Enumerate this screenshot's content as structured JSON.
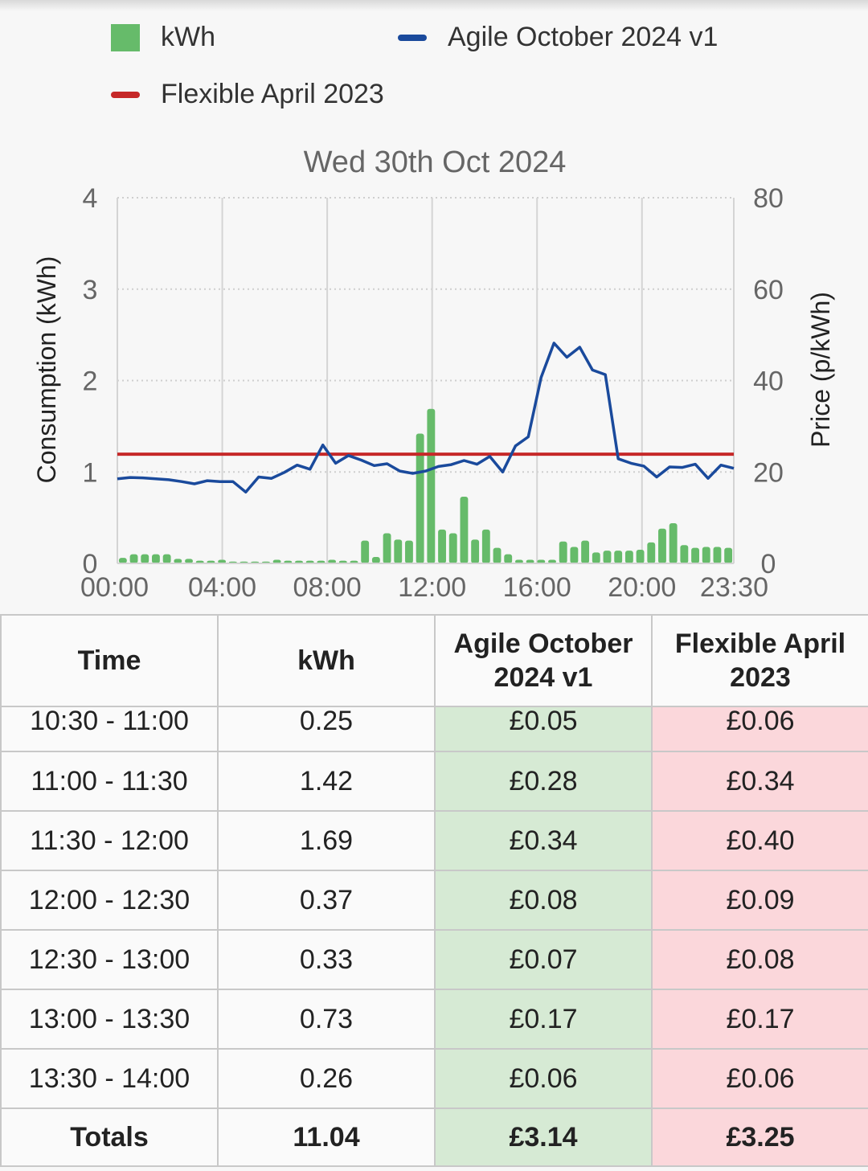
{
  "legend": [
    {
      "label": "kWh",
      "color": "#66bb6a",
      "shape": "box"
    },
    {
      "label": "Agile October 2024 v1",
      "color": "#1a4a9c",
      "shape": "line"
    },
    {
      "label": "Flexible April 2023",
      "color": "#c62828",
      "shape": "line"
    }
  ],
  "chart_data": {
    "type": "bar",
    "title": "Wed 30th Oct 2024",
    "ylabel": "Consumption (kWh)",
    "y2label": "Price (p/kWh)",
    "ylim": [
      0,
      4
    ],
    "y2lim": [
      0,
      80
    ],
    "yticks": [
      "0",
      "1",
      "2",
      "3",
      "4"
    ],
    "y2ticks": [
      "0",
      "20",
      "40",
      "60",
      "80"
    ],
    "xticks": [
      "00:00",
      "04:00",
      "08:00",
      "12:00",
      "16:00",
      "20:00",
      "23:30"
    ],
    "grid": true,
    "series": [
      {
        "name": "kWh",
        "type": "bar",
        "axis": "left",
        "color": "#66bb6a",
        "values": [
          0.06,
          0.1,
          0.1,
          0.1,
          0.1,
          0.05,
          0.05,
          0.03,
          0.03,
          0.04,
          0.02,
          0.02,
          0.02,
          0.02,
          0.04,
          0.03,
          0.03,
          0.03,
          0.03,
          0.04,
          0.03,
          0.03,
          0.25,
          0.07,
          0.33,
          0.26,
          0.25,
          1.42,
          1.69,
          0.37,
          0.33,
          0.73,
          0.26,
          0.37,
          0.17,
          0.1,
          0.04,
          0.04,
          0.04,
          0.04,
          0.24,
          0.18,
          0.25,
          0.12,
          0.14,
          0.14,
          0.14,
          0.15,
          0.23,
          0.38,
          0.44,
          0.2,
          0.17,
          0.18,
          0.18,
          0.17
        ]
      },
      {
        "name": "Agile October 2024 v1",
        "type": "line",
        "axis": "right",
        "color": "#1a4a9c",
        "values": [
          18.5,
          18.8,
          18.7,
          18.5,
          18.3,
          17.9,
          17.4,
          18.1,
          17.9,
          17.9,
          15.6,
          18.9,
          18.6,
          19.9,
          21.5,
          20.6,
          25.9,
          21.9,
          23.6,
          22.6,
          21.4,
          21.8,
          20.2,
          19.7,
          20.2,
          21.2,
          21.6,
          22.5,
          21.7,
          23.4,
          20.0,
          25.7,
          27.7,
          40.7,
          48.2,
          45.1,
          47.3,
          42.3,
          41.3,
          22.9,
          21.9,
          21.3,
          18.9,
          21.1,
          21.0,
          21.7,
          18.6,
          21.5,
          20.8
        ]
      },
      {
        "name": "Flexible April 2023",
        "type": "line",
        "axis": "right",
        "color": "#c62828",
        "values": [
          23.9,
          23.9
        ]
      }
    ]
  },
  "table": {
    "headers": [
      "Time",
      "kWh",
      "Agile October 2024 v1",
      "Flexible April 2023"
    ],
    "header_lines": [
      [
        "Time"
      ],
      [
        "kWh"
      ],
      [
        "Agile October",
        "2024 v1"
      ],
      [
        "Flexible April",
        "2023"
      ]
    ],
    "rows": [
      {
        "time": "10:30 - 11:00",
        "kwh": "0.25",
        "agile": "£0.05",
        "flexible": "£0.06"
      },
      {
        "time": "11:00 - 11:30",
        "kwh": "1.42",
        "agile": "£0.28",
        "flexible": "£0.34"
      },
      {
        "time": "11:30 - 12:00",
        "kwh": "1.69",
        "agile": "£0.34",
        "flexible": "£0.40"
      },
      {
        "time": "12:00 - 12:30",
        "kwh": "0.37",
        "agile": "£0.08",
        "flexible": "£0.09"
      },
      {
        "time": "12:30 - 13:00",
        "kwh": "0.33",
        "agile": "£0.07",
        "flexible": "£0.08"
      },
      {
        "time": "13:00 - 13:30",
        "kwh": "0.73",
        "agile": "£0.17",
        "flexible": "£0.17"
      },
      {
        "time": "13:30 - 14:00",
        "kwh": "0.26",
        "agile": "£0.06",
        "flexible": "£0.06"
      }
    ],
    "totals": {
      "label": "Totals",
      "kwh": "11.04",
      "agile": "£3.14",
      "flexible": "£3.25"
    }
  },
  "colors": {
    "agile_cell": "#d6ead4",
    "flexible_cell": "#fbd7db",
    "grid": "#cccccc",
    "axis_text": "#666666"
  }
}
